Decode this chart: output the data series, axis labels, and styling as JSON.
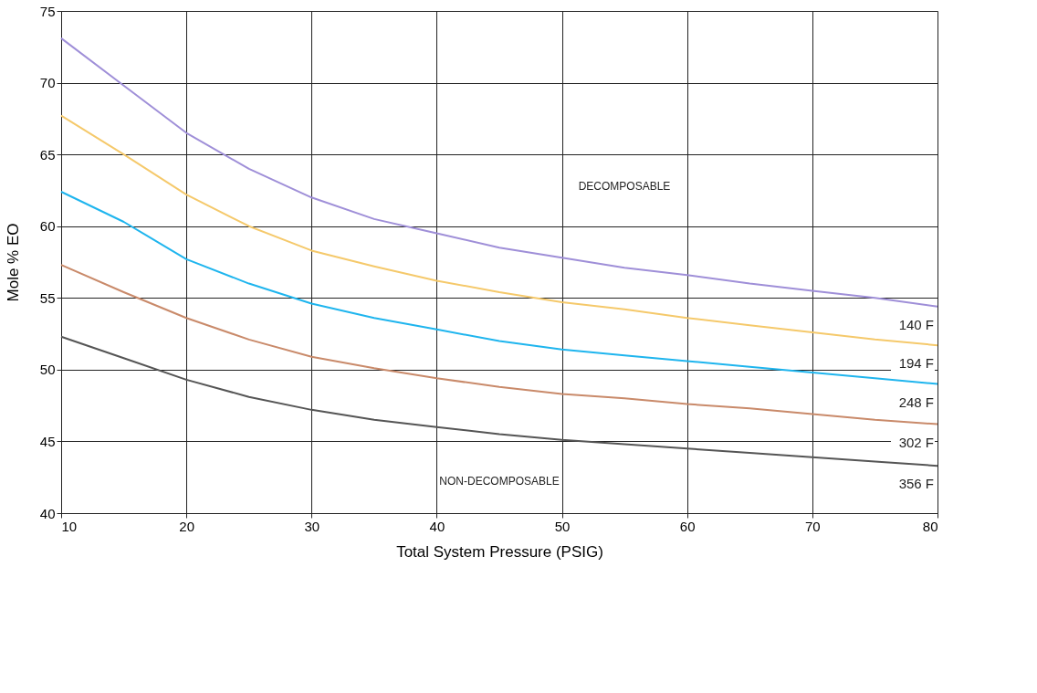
{
  "chart_data": {
    "type": "line",
    "xlabel": "Total System Pressure (PSIG)",
    "ylabel": "Mole % EO",
    "x": [
      10,
      15,
      20,
      25,
      30,
      35,
      40,
      45,
      50,
      55,
      60,
      65,
      70,
      75,
      80
    ],
    "xlim": [
      10,
      80
    ],
    "xticks": [
      10,
      20,
      30,
      40,
      50,
      60,
      70,
      80
    ],
    "ylim": [
      40,
      75
    ],
    "yticks": [
      40,
      45,
      50,
      55,
      60,
      65,
      70,
      75
    ],
    "grid": true,
    "legend": false,
    "marker": "none",
    "line_style": "solid",
    "series": [
      {
        "name": "140 F",
        "color": "#9f8fd8",
        "values": [
          73.1,
          69.8,
          66.5,
          64.0,
          62.0,
          60.5,
          59.5,
          58.5,
          57.8,
          57.1,
          56.6,
          56.0,
          55.5,
          55.0,
          54.4
        ]
      },
      {
        "name": "194 F",
        "color": "#f5c96b",
        "values": [
          67.7,
          65.0,
          62.2,
          60.0,
          58.3,
          57.2,
          56.2,
          55.4,
          54.7,
          54.2,
          53.6,
          53.1,
          52.6,
          52.1,
          51.7
        ]
      },
      {
        "name": "248 F",
        "color": "#1fb5ee",
        "values": [
          62.4,
          60.3,
          57.7,
          56.0,
          54.6,
          53.6,
          52.8,
          52.0,
          51.4,
          51.0,
          50.6,
          50.2,
          49.8,
          49.4,
          49.0
        ]
      },
      {
        "name": "302 F",
        "color": "#c98a6a",
        "values": [
          57.3,
          55.4,
          53.6,
          52.1,
          50.9,
          50.1,
          49.4,
          48.8,
          48.3,
          48.0,
          47.6,
          47.3,
          46.9,
          46.5,
          46.2
        ]
      },
      {
        "name": "356 F",
        "color": "#555555",
        "values": [
          52.3,
          50.8,
          49.3,
          48.1,
          47.2,
          46.5,
          46.0,
          45.5,
          45.1,
          44.8,
          44.5,
          44.2,
          43.9,
          43.6,
          43.3
        ]
      }
    ],
    "annotations": [
      "DECOMPOSABLE",
      "NON-DECOMPOSABLE"
    ]
  }
}
